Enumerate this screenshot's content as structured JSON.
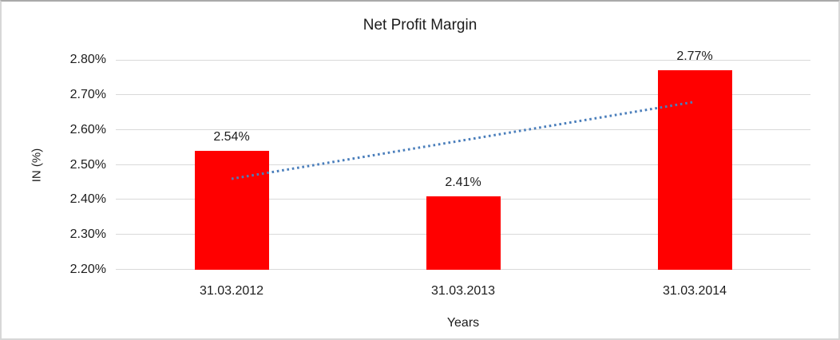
{
  "chart_data": {
    "type": "bar",
    "title": "Net Profit Margin",
    "xlabel": "Years",
    "ylabel": "IN (%)",
    "categories": [
      "31.03.2012",
      "31.03.2013",
      "31.03.2014"
    ],
    "values": [
      2.54,
      2.41,
      2.77
    ],
    "value_labels": [
      "2.54%",
      "2.41%",
      "2.77%"
    ],
    "bar_color": "#ff0000",
    "ylim": [
      2.2,
      2.8
    ],
    "yticks": [
      {
        "label": "2.80%",
        "value": 2.8
      },
      {
        "label": "2.70%",
        "value": 2.7
      },
      {
        "label": "2.60%",
        "value": 2.6
      },
      {
        "label": "2.50%",
        "value": 2.5
      },
      {
        "label": "2.40%",
        "value": 2.4
      },
      {
        "label": "2.30%",
        "value": 2.3
      },
      {
        "label": "2.20%",
        "value": 2.2
      }
    ],
    "grid": "horizontal",
    "gridline_color": "#d9d9d9",
    "legend": "none",
    "trendline": {
      "type": "linear",
      "style": "dotted",
      "color": "#4a7ebb",
      "start_value": 2.46,
      "end_value": 2.68
    }
  }
}
